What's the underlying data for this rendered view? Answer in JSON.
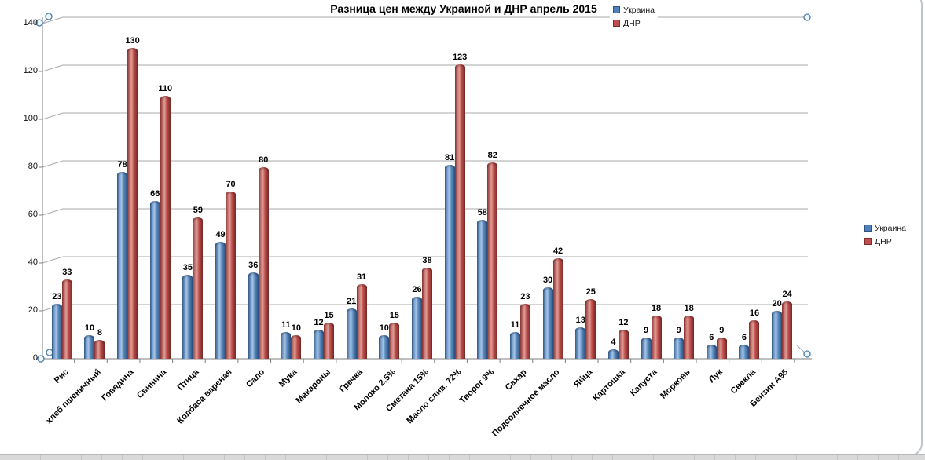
{
  "title_text": "Разница цен между Украиной и ДНР  апрель 2015",
  "legend": {
    "series1": "Украина",
    "series2": "ДНР"
  },
  "colors": {
    "ukraine": "#4f81bd",
    "dnr": "#c0504d",
    "gridline": "#a8a8a8",
    "axis": "#7f7f7f",
    "handle_stroke": "#4a7ba6"
  },
  "chart_data": {
    "type": "bar",
    "title": "Разница цен между Украиной и ДНР  апрель 2015",
    "categories": [
      "Рис",
      "хлеб пшеничный",
      "Говядина",
      "Свинина",
      "Птица",
      "Колбаса вареная",
      "Сало",
      "Мука",
      "Макароны",
      "Гречка",
      "Молоко 2,5%",
      "Сметана 15%",
      "Масло слив. 72%",
      "Творог 9%",
      "Сахар",
      "Подсолнечное масло",
      "Яйца",
      "Картошка",
      "Капуста",
      "Морковь",
      "Лук",
      "Свекла",
      "Бензин А95"
    ],
    "series": [
      {
        "name": "Украина",
        "color": "#4f81bd",
        "values": [
          23,
          10,
          78,
          66,
          35,
          49,
          36,
          11,
          12,
          21,
          10,
          26,
          81,
          58,
          11,
          30,
          13,
          4,
          9,
          9,
          6,
          6,
          20
        ]
      },
      {
        "name": "ДНР",
        "color": "#c0504d",
        "values": [
          33,
          8,
          130,
          110,
          59,
          70,
          80,
          10,
          15,
          31,
          15,
          38,
          123,
          82,
          23,
          42,
          25,
          12,
          18,
          18,
          9,
          16,
          24
        ]
      }
    ],
    "ylim": [
      0,
      140
    ],
    "yticks": [
      0,
      20,
      40,
      60,
      80,
      100,
      120,
      140
    ],
    "grid": true,
    "legend_position": "top-right and right",
    "bar_style": "3d-cylinder",
    "data_labels": true
  }
}
